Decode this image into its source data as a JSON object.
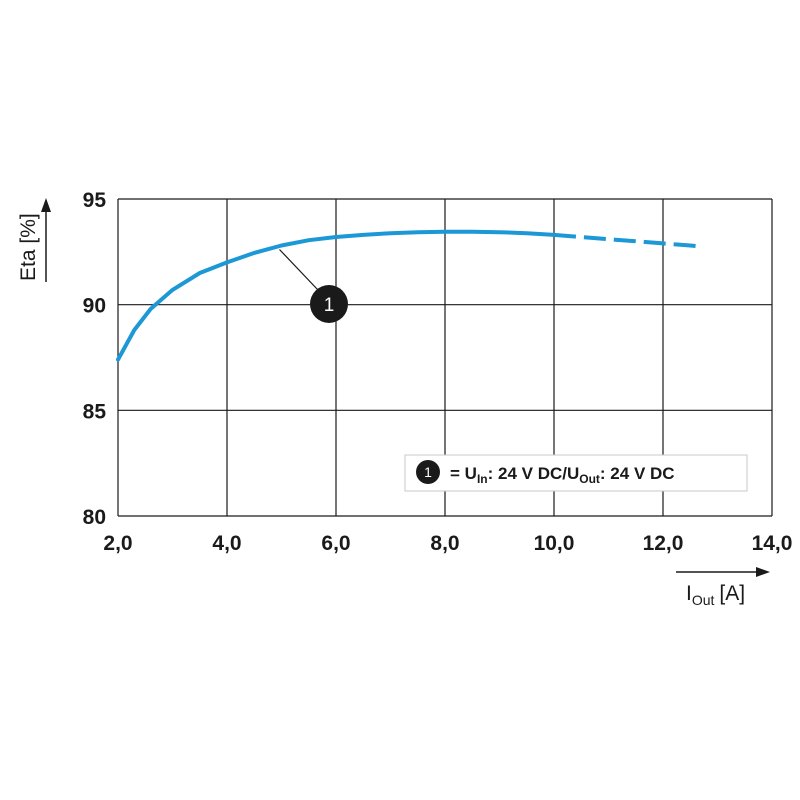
{
  "chart_data": {
    "type": "line",
    "xlabel": "I",
    "xlabel_sub": "Out",
    "xlabel_unit": "[A]",
    "ylabel": "Eta [%]",
    "xlim": [
      2.0,
      14.0
    ],
    "ylim": [
      80,
      95
    ],
    "x_ticks": [
      "2,0",
      "4,0",
      "6,0",
      "8,0",
      "10,0",
      "12,0",
      "14,0"
    ],
    "y_ticks": [
      "95",
      "90",
      "85",
      "80"
    ],
    "x_tick_values": [
      2,
      4,
      6,
      8,
      10,
      12,
      14
    ],
    "y_tick_values": [
      95,
      90,
      85,
      80
    ],
    "grid": true,
    "line_color": "#1b98d5",
    "series": [
      {
        "marker": "1",
        "x": [
          2.0,
          2.3,
          2.6,
          3.0,
          3.5,
          4.0,
          4.5,
          5.0,
          5.5,
          6.0,
          6.5,
          7.0,
          7.5,
          8.0,
          8.5,
          9.0,
          9.5,
          10.0,
          10.5,
          11.0,
          11.5,
          12.0,
          12.5,
          12.7
        ],
        "y": [
          87.4,
          88.8,
          89.8,
          90.7,
          91.5,
          92.0,
          92.45,
          92.8,
          93.05,
          93.2,
          93.3,
          93.38,
          93.43,
          93.45,
          93.45,
          93.43,
          93.38,
          93.3,
          93.2,
          93.1,
          93.0,
          92.9,
          92.8,
          92.75
        ],
        "solid_until_x": 10.0
      }
    ],
    "annotation": {
      "marker": "1",
      "at_x": 5.0
    },
    "legend": {
      "placement": "bottom-right",
      "marker": "1",
      "text_eq": "= U",
      "sub_in": "In",
      "text_mid": ": 24 V DC/U",
      "sub_out": "Out",
      "text_end": ": 24 V DC"
    }
  }
}
